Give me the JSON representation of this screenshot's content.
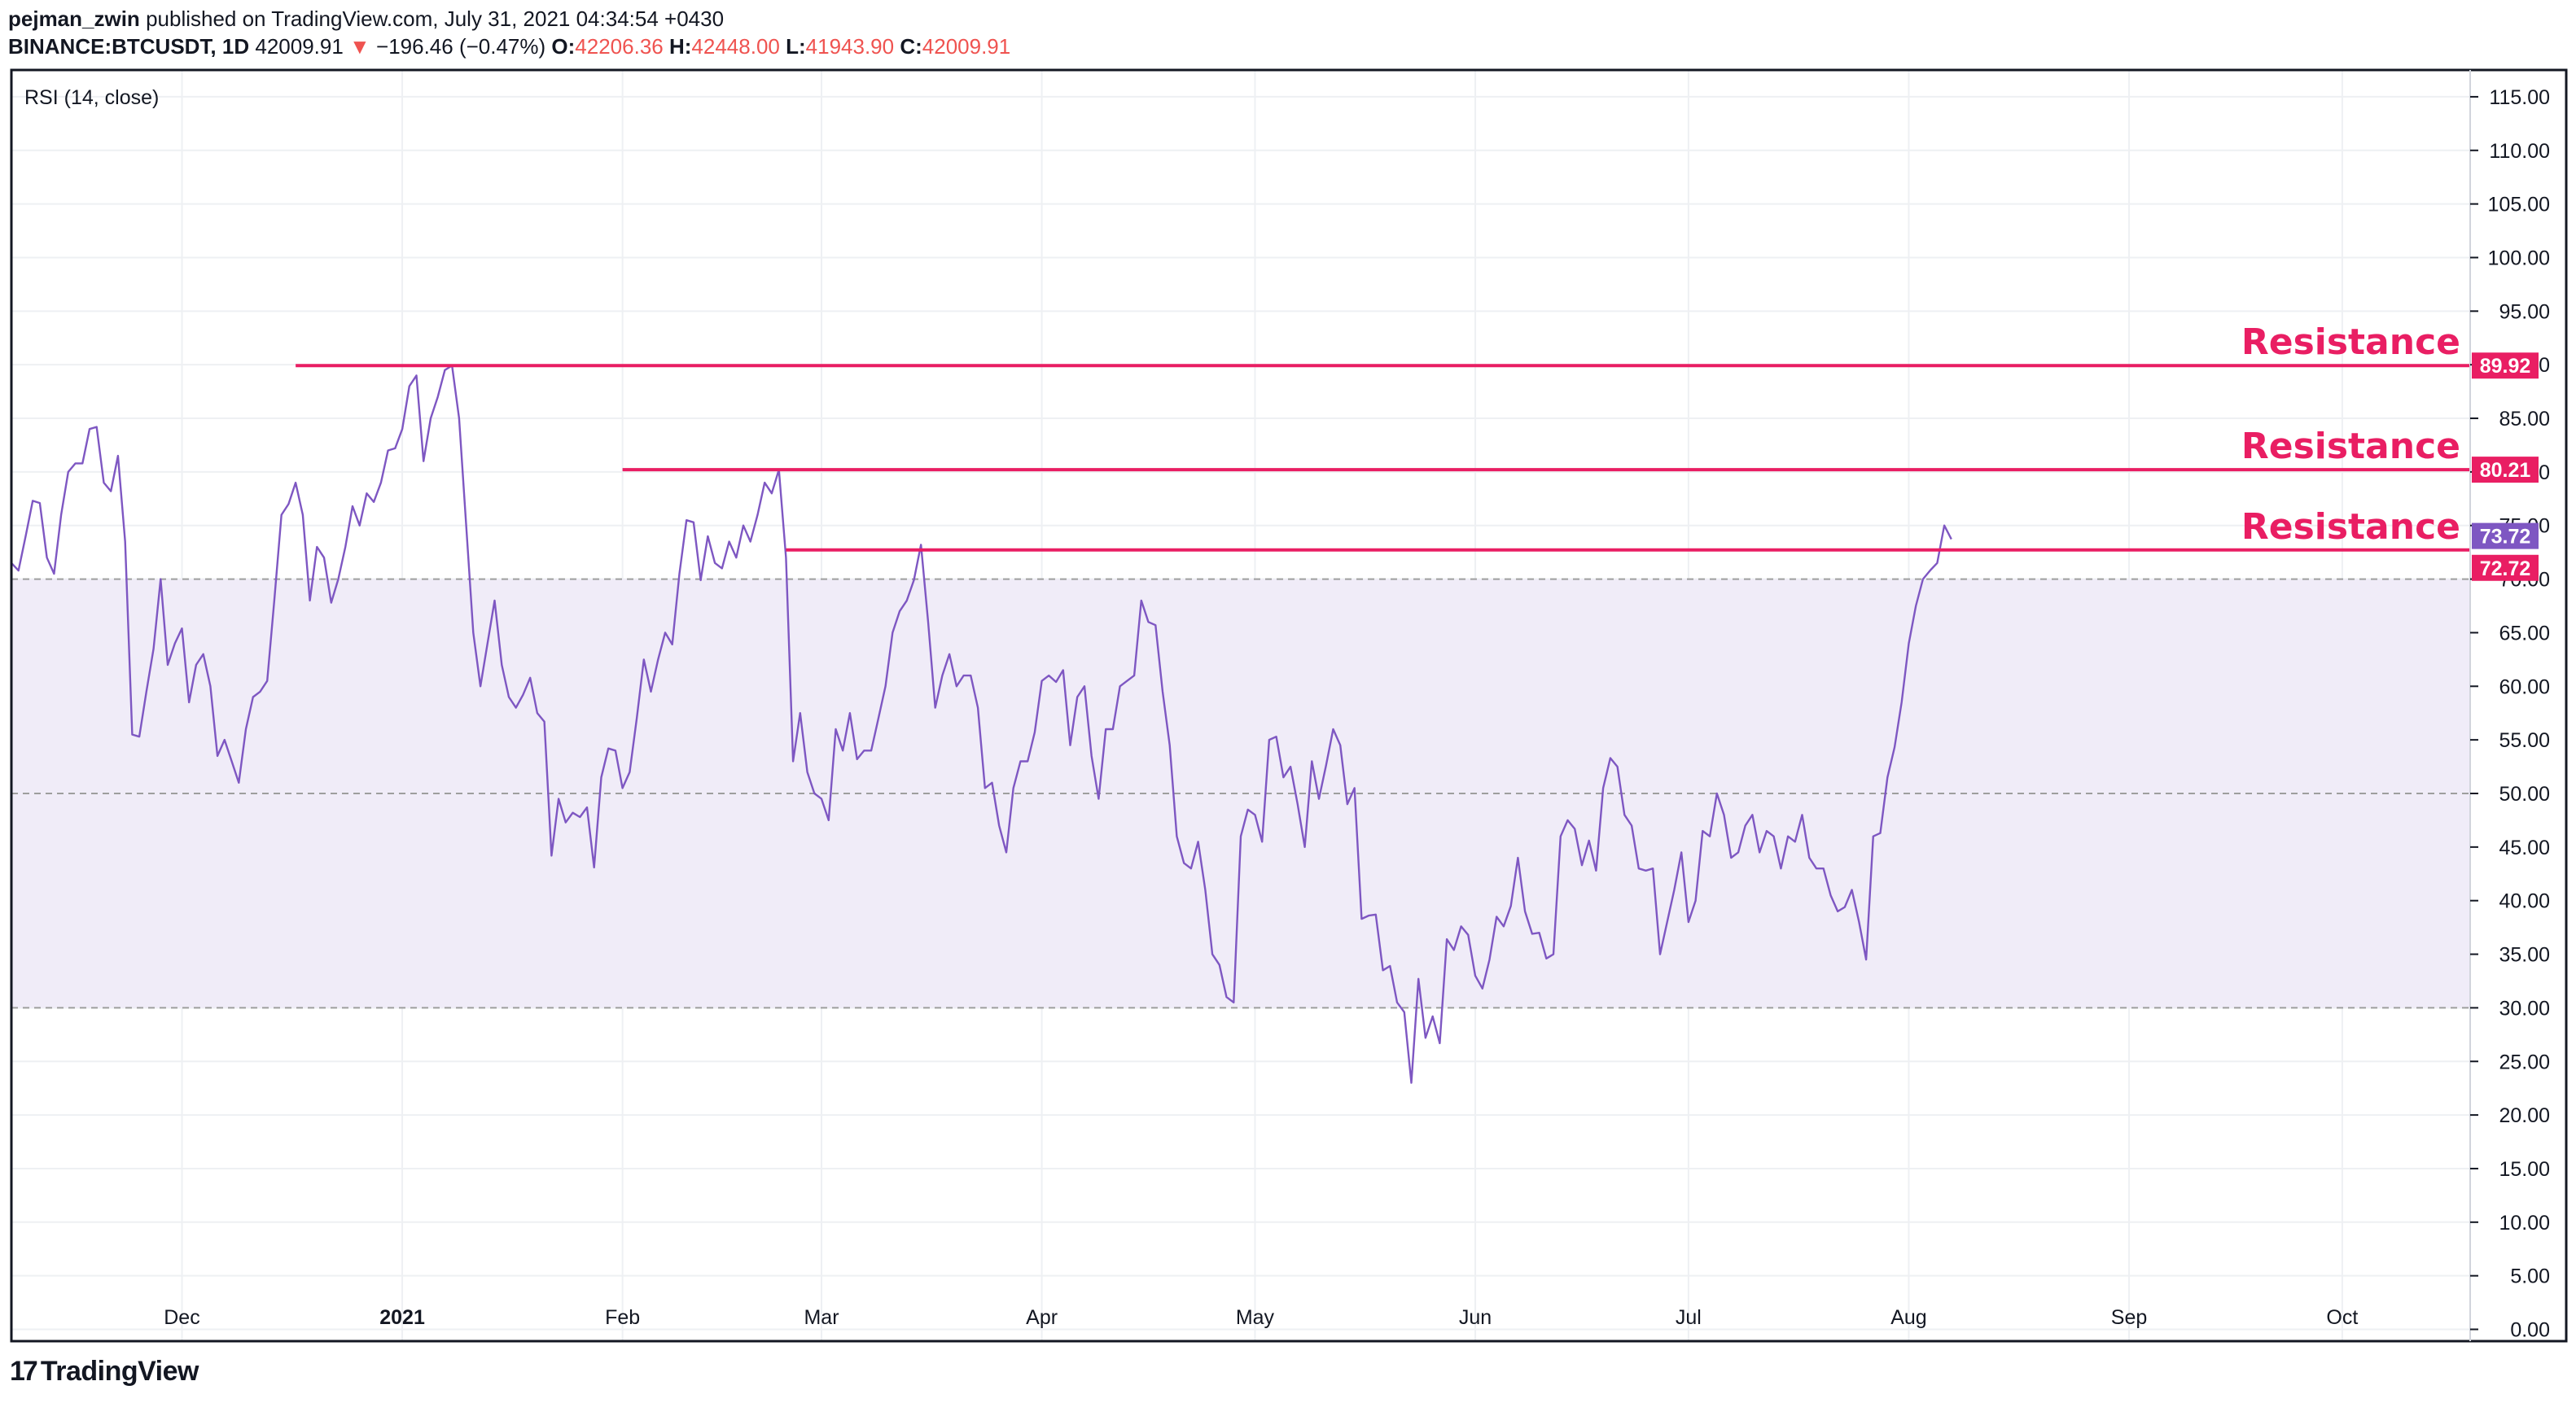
{
  "header": {
    "author": "pejman_zwin",
    "published_text": "published on TradingView.com, July 31, 2021 04:34:54 +0430",
    "symbol": "BINANCE:BTCUSDT, 1D",
    "last_price": "42009.91",
    "change_arrow": "▼",
    "change": "−196.46 (−0.47%)",
    "o_label": "O:",
    "o_value": "42206.36",
    "h_label": "H:",
    "h_value": "42448.00",
    "l_label": "L:",
    "l_value": "41943.90",
    "c_label": "C:",
    "c_value": "42009.91"
  },
  "footer": {
    "brand": "TradingView",
    "logo_mark": "17"
  },
  "colors": {
    "rsi_line": "#7e57c2",
    "band_fill": "#f0ecf8",
    "resistance": "#e91e63",
    "current_badge": "#7e57c2",
    "grid": "#eef0f3",
    "axis_text": "#131722",
    "level_dash": "#9e9e9e"
  },
  "chart_data": {
    "type": "line",
    "title": "RSI (14, close)",
    "xlabel": "",
    "ylabel": "",
    "ylim": [
      -1.1,
      117.5
    ],
    "y_ticks": [
      0,
      5,
      10,
      15,
      20,
      25,
      30,
      35,
      40,
      45,
      50,
      55,
      60,
      65,
      70,
      75,
      80,
      85,
      90,
      95,
      100,
      105,
      110,
      115
    ],
    "y_tick_labels": [
      "0.00",
      "5.00",
      "10.00",
      "15.00",
      "20.00",
      "25.00",
      "30.00",
      "35.00",
      "40.00",
      "45.00",
      "50.00",
      "55.00",
      "60.00",
      "65.00",
      "70.00",
      "75.00",
      "80.00",
      "85.00",
      "90.00",
      "95.00",
      "100.00",
      "105.00",
      "110.00",
      "115.00"
    ],
    "x_start_date": "2020-11-07",
    "x_end_date": "2021-10-19",
    "x_ticks": [
      {
        "label": "Dec",
        "date": "2020-12-01",
        "bold": false
      },
      {
        "label": "2021",
        "date": "2021-01-01",
        "bold": true
      },
      {
        "label": "Feb",
        "date": "2021-02-01",
        "bold": false
      },
      {
        "label": "Mar",
        "date": "2021-03-01",
        "bold": false
      },
      {
        "label": "Apr",
        "date": "2021-04-01",
        "bold": false
      },
      {
        "label": "May",
        "date": "2021-05-01",
        "bold": false
      },
      {
        "label": "Jun",
        "date": "2021-06-01",
        "bold": false
      },
      {
        "label": "Jul",
        "date": "2021-07-01",
        "bold": false
      },
      {
        "label": "Aug",
        "date": "2021-08-01",
        "bold": false
      },
      {
        "label": "Sep",
        "date": "2021-09-01",
        "bold": false
      },
      {
        "label": "Oct",
        "date": "2021-10-01",
        "bold": false
      }
    ],
    "bands": {
      "upper": 70,
      "middle": 50,
      "lower": 30
    },
    "resistances": [
      {
        "label": "Resistance",
        "value": 89.92,
        "value_label": "89.92",
        "start_date": "2020-12-17"
      },
      {
        "label": "Resistance",
        "value": 80.21,
        "value_label": "80.21",
        "start_date": "2021-02-01"
      },
      {
        "label": "Resistance",
        "value": 72.72,
        "value_label": "72.72",
        "start_date": "2021-02-24"
      }
    ],
    "current_value": 73.72,
    "current_value_label": "73.72",
    "series": [
      {
        "name": "RSI (14, close)",
        "start_date": "2020-11-07",
        "interval_days": 1,
        "values": [
          71.5,
          70.8,
          74,
          77.3,
          77.1,
          72,
          70.5,
          76,
          80,
          80.8,
          80.8,
          84,
          84.2,
          79,
          78.2,
          81.5,
          73.5,
          55.5,
          55.3,
          59.5,
          63.5,
          70,
          62,
          64,
          65.4,
          58.5,
          62,
          63,
          60,
          53.5,
          55,
          53,
          51,
          56,
          59,
          59.5,
          60.5,
          68,
          76,
          77,
          79,
          76,
          68,
          73,
          72,
          67.8,
          70,
          73,
          76.8,
          75,
          78,
          77.2,
          79,
          82,
          82.2,
          84,
          88,
          89,
          81,
          85,
          87,
          89.5,
          89.92,
          85,
          75,
          65,
          60,
          64,
          68,
          62,
          59,
          58,
          59.2,
          60.8,
          57.5,
          56.7,
          44.2,
          49.5,
          47.3,
          48.2,
          47.8,
          48.7,
          43.1,
          51.5,
          54.2,
          54,
          50.5,
          52,
          57,
          62.5,
          59.5,
          62.5,
          65,
          63.9,
          70.5,
          75.5,
          75.3,
          69.9,
          74,
          71.5,
          71,
          73.5,
          72,
          75,
          73.5,
          76,
          79,
          78,
          80.21,
          72,
          53,
          57.5,
          52,
          50,
          49.5,
          47.5,
          56,
          54,
          57.5,
          53.2,
          54,
          54,
          57,
          60,
          65,
          67,
          68,
          69.9,
          73.2,
          66,
          58,
          61,
          63,
          60,
          61,
          61,
          58,
          50.5,
          51,
          47,
          44.5,
          50.5,
          53,
          53,
          55.7,
          60.5,
          61,
          60.4,
          61.5,
          54.5,
          59,
          60,
          53.5,
          49.5,
          56,
          56,
          60,
          60.5,
          61,
          68,
          66,
          65.7,
          59.5,
          54.5,
          46,
          43.5,
          43,
          45.5,
          41,
          35,
          34,
          31,
          30.5,
          46,
          48.5,
          48,
          45.5,
          55,
          55.3,
          51.5,
          52.5,
          49,
          45,
          53,
          49.5,
          52.6,
          56,
          54.5,
          49,
          50.5,
          38.3,
          38.6,
          38.7,
          33.5,
          33.9,
          30.5,
          29.6,
          23,
          32.7,
          27.2,
          29.2,
          26.7,
          36.4,
          35.4,
          37.6,
          36.8,
          33,
          31.8,
          34.5,
          38.5,
          37.6,
          39.5,
          44,
          39,
          36.9,
          37,
          34.6,
          35,
          46,
          47.5,
          46.7,
          43.3,
          45.6,
          42.8,
          50.5,
          53.3,
          52.5,
          48,
          47,
          43,
          42.8,
          43,
          35,
          38,
          41,
          44.5,
          38,
          40,
          46.5,
          46,
          50,
          48,
          44,
          44.5,
          47,
          48,
          44.5,
          46.5,
          46,
          43,
          46,
          45.5,
          48,
          44,
          43,
          43,
          40.5,
          39,
          39.4,
          41,
          38,
          34.5,
          46,
          46.3,
          51.5,
          54.3,
          58.5,
          64,
          67.5,
          70,
          70.8,
          71.5,
          75,
          73.72
        ]
      }
    ]
  }
}
